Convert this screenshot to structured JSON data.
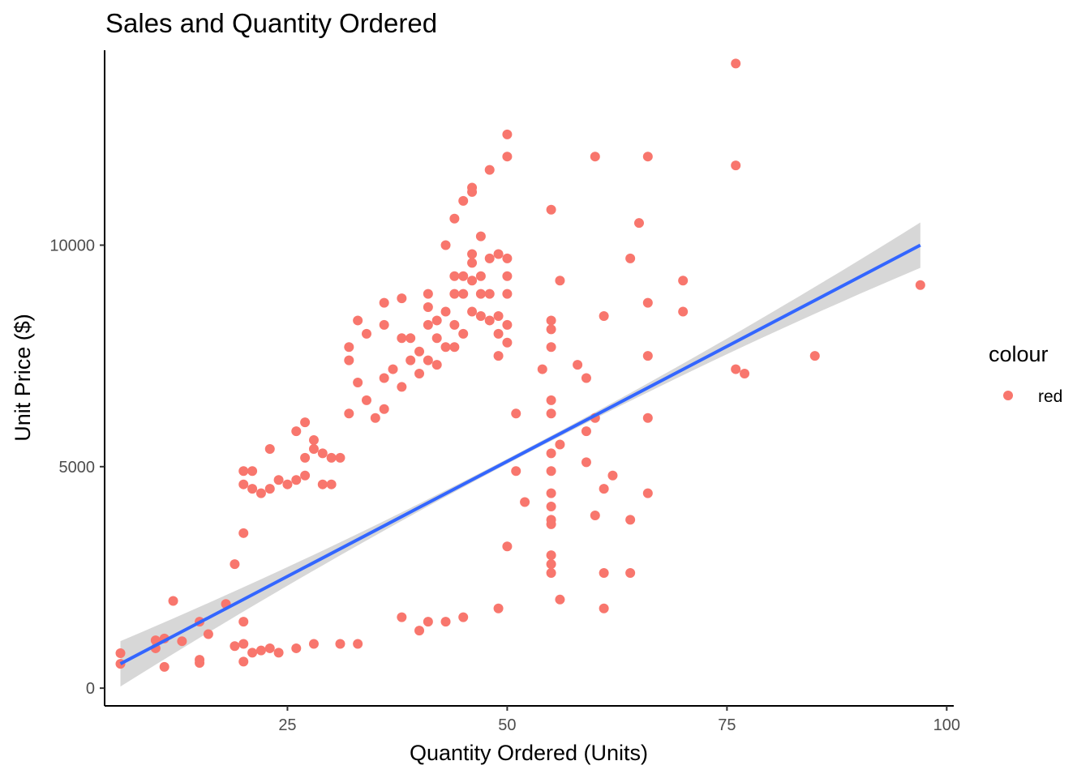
{
  "chart_data": {
    "type": "scatter",
    "title": "Sales and Quantity Ordered",
    "xlabel": "Quantity Ordered (Units)",
    "ylabel": "Unit Price ($)",
    "xlim": [
      4.2,
      100.8
    ],
    "ylim": [
      -400,
      14400
    ],
    "x_ticks": [
      25,
      50,
      75,
      100
    ],
    "x_tick_labels": [
      "25",
      "50",
      "75",
      "100"
    ],
    "y_ticks": [
      0,
      5000,
      10000
    ],
    "y_tick_labels": [
      "0",
      "5000",
      "10000"
    ],
    "grid": false,
    "legend": {
      "title": "colour",
      "placement": "right",
      "entries": [
        {
          "label": "red",
          "color": "#F8766D"
        }
      ]
    },
    "series": [
      {
        "name": "red",
        "color": "#F8766D",
        "points": [
          [
            6,
            790
          ],
          [
            6,
            550
          ],
          [
            10,
            1080
          ],
          [
            10,
            900
          ],
          [
            11,
            1120
          ],
          [
            11,
            480
          ],
          [
            12,
            1970
          ],
          [
            13,
            1060
          ],
          [
            15,
            1500
          ],
          [
            15,
            640
          ],
          [
            15,
            570
          ],
          [
            16,
            1220
          ],
          [
            18,
            1900
          ],
          [
            19,
            2800
          ],
          [
            19,
            950
          ],
          [
            20,
            4900
          ],
          [
            20,
            4600
          ],
          [
            20,
            3500
          ],
          [
            20,
            1500
          ],
          [
            20,
            1000
          ],
          [
            20,
            600
          ],
          [
            21,
            4900
          ],
          [
            21,
            4500
          ],
          [
            21,
            800
          ],
          [
            22,
            4400
          ],
          [
            22,
            850
          ],
          [
            23,
            5400
          ],
          [
            23,
            4500
          ],
          [
            23,
            900
          ],
          [
            24,
            4700
          ],
          [
            24,
            800
          ],
          [
            25,
            4600
          ],
          [
            26,
            5800
          ],
          [
            26,
            4700
          ],
          [
            26,
            900
          ],
          [
            27,
            6000
          ],
          [
            27,
            5200
          ],
          [
            27,
            4800
          ],
          [
            28,
            5600
          ],
          [
            28,
            5400
          ],
          [
            28,
            1000
          ],
          [
            29,
            5300
          ],
          [
            29,
            4600
          ],
          [
            30,
            5200
          ],
          [
            30,
            4600
          ],
          [
            31,
            5200
          ],
          [
            31,
            1000
          ],
          [
            32,
            7700
          ],
          [
            32,
            7400
          ],
          [
            32,
            6200
          ],
          [
            33,
            8300
          ],
          [
            33,
            6900
          ],
          [
            33,
            1000
          ],
          [
            34,
            8000
          ],
          [
            34,
            6500
          ],
          [
            35,
            6100
          ],
          [
            36,
            8700
          ],
          [
            36,
            8200
          ],
          [
            36,
            7000
          ],
          [
            36,
            6300
          ],
          [
            37,
            7200
          ],
          [
            38,
            8800
          ],
          [
            38,
            7900
          ],
          [
            38,
            6800
          ],
          [
            38,
            1600
          ],
          [
            39,
            7900
          ],
          [
            39,
            7400
          ],
          [
            40,
            7600
          ],
          [
            40,
            7100
          ],
          [
            40,
            1300
          ],
          [
            41,
            8900
          ],
          [
            41,
            8600
          ],
          [
            41,
            8200
          ],
          [
            41,
            7400
          ],
          [
            41,
            1500
          ],
          [
            42,
            8300
          ],
          [
            42,
            7900
          ],
          [
            42,
            7300
          ],
          [
            43,
            10000
          ],
          [
            43,
            8500
          ],
          [
            43,
            7700
          ],
          [
            43,
            1500
          ],
          [
            44,
            10600
          ],
          [
            44,
            9300
          ],
          [
            44,
            8900
          ],
          [
            44,
            8200
          ],
          [
            44,
            7700
          ],
          [
            45,
            11000
          ],
          [
            45,
            9300
          ],
          [
            45,
            8900
          ],
          [
            45,
            8000
          ],
          [
            45,
            1600
          ],
          [
            46,
            11300
          ],
          [
            46,
            11200
          ],
          [
            46,
            9800
          ],
          [
            46,
            9600
          ],
          [
            46,
            9200
          ],
          [
            46,
            8500
          ],
          [
            47,
            10200
          ],
          [
            47,
            9300
          ],
          [
            47,
            8900
          ],
          [
            47,
            8400
          ],
          [
            48,
            11700
          ],
          [
            48,
            9700
          ],
          [
            48,
            8900
          ],
          [
            48,
            8300
          ],
          [
            49,
            9800
          ],
          [
            49,
            8400
          ],
          [
            49,
            8000
          ],
          [
            49,
            7500
          ],
          [
            49,
            1800
          ],
          [
            50,
            12500
          ],
          [
            50,
            12000
          ],
          [
            50,
            9700
          ],
          [
            50,
            9300
          ],
          [
            50,
            8900
          ],
          [
            50,
            8200
          ],
          [
            50,
            7800
          ],
          [
            50,
            3200
          ],
          [
            51,
            6200
          ],
          [
            51,
            4900
          ],
          [
            52,
            4200
          ],
          [
            54,
            7200
          ],
          [
            55,
            10800
          ],
          [
            55,
            8300
          ],
          [
            55,
            8100
          ],
          [
            55,
            7700
          ],
          [
            55,
            6500
          ],
          [
            55,
            6200
          ],
          [
            55,
            5300
          ],
          [
            55,
            4900
          ],
          [
            55,
            4400
          ],
          [
            55,
            4100
          ],
          [
            55,
            3800
          ],
          [
            55,
            3700
          ],
          [
            55,
            3000
          ],
          [
            55,
            2800
          ],
          [
            55,
            2600
          ],
          [
            56,
            9200
          ],
          [
            56,
            5500
          ],
          [
            56,
            2000
          ],
          [
            58,
            7300
          ],
          [
            59,
            7000
          ],
          [
            59,
            5800
          ],
          [
            59,
            5100
          ],
          [
            60,
            12000
          ],
          [
            60,
            6100
          ],
          [
            60,
            3900
          ],
          [
            61,
            8400
          ],
          [
            61,
            4500
          ],
          [
            61,
            2600
          ],
          [
            61,
            1800
          ],
          [
            62,
            4800
          ],
          [
            64,
            9700
          ],
          [
            64,
            3800
          ],
          [
            64,
            2600
          ],
          [
            65,
            10500
          ],
          [
            66,
            12000
          ],
          [
            66,
            8700
          ],
          [
            66,
            7500
          ],
          [
            66,
            6100
          ],
          [
            66,
            4400
          ],
          [
            70,
            9200
          ],
          [
            70,
            8500
          ],
          [
            76,
            14100
          ],
          [
            76,
            11800
          ],
          [
            76,
            7200
          ],
          [
            77,
            7100
          ],
          [
            85,
            7500
          ],
          [
            97,
            9100
          ]
        ]
      }
    ],
    "trend_line": {
      "method": "linear",
      "color": "#3366FF",
      "x": [
        6,
        97
      ],
      "y": [
        550,
        10000
      ],
      "band_color": "#d3d3d3"
    }
  }
}
